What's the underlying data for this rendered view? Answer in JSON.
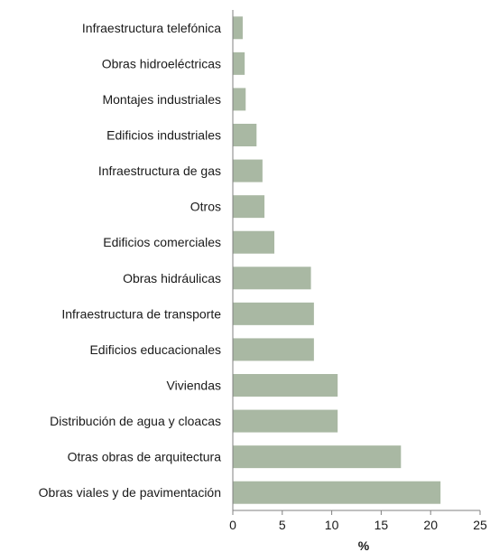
{
  "chart_data": {
    "type": "bar",
    "orientation": "horizontal",
    "categories": [
      "Infraestructura telefónica",
      "Obras hidroeléctricas",
      "Montajes industriales",
      "Edificios industriales",
      "Infraestructura de gas",
      "Otros",
      "Edificios comerciales",
      "Obras hidráulicas",
      "Infraestructura de transporte",
      "Edificios educacionales",
      "Viviendas",
      "Distribución de agua y cloacas",
      "Otras obras de arquitectura",
      "Obras viales y de pavimentación"
    ],
    "values": [
      1.0,
      1.2,
      1.3,
      2.4,
      3.0,
      3.2,
      4.2,
      7.9,
      8.2,
      8.2,
      10.6,
      10.6,
      17.0,
      21.0
    ],
    "xlabel": "%",
    "ylabel": "",
    "xlim": [
      0,
      25
    ],
    "xticks": [
      "0",
      "5",
      "10",
      "15",
      "20",
      "25"
    ],
    "grid": false,
    "bar_color": "#a9b8a3"
  }
}
